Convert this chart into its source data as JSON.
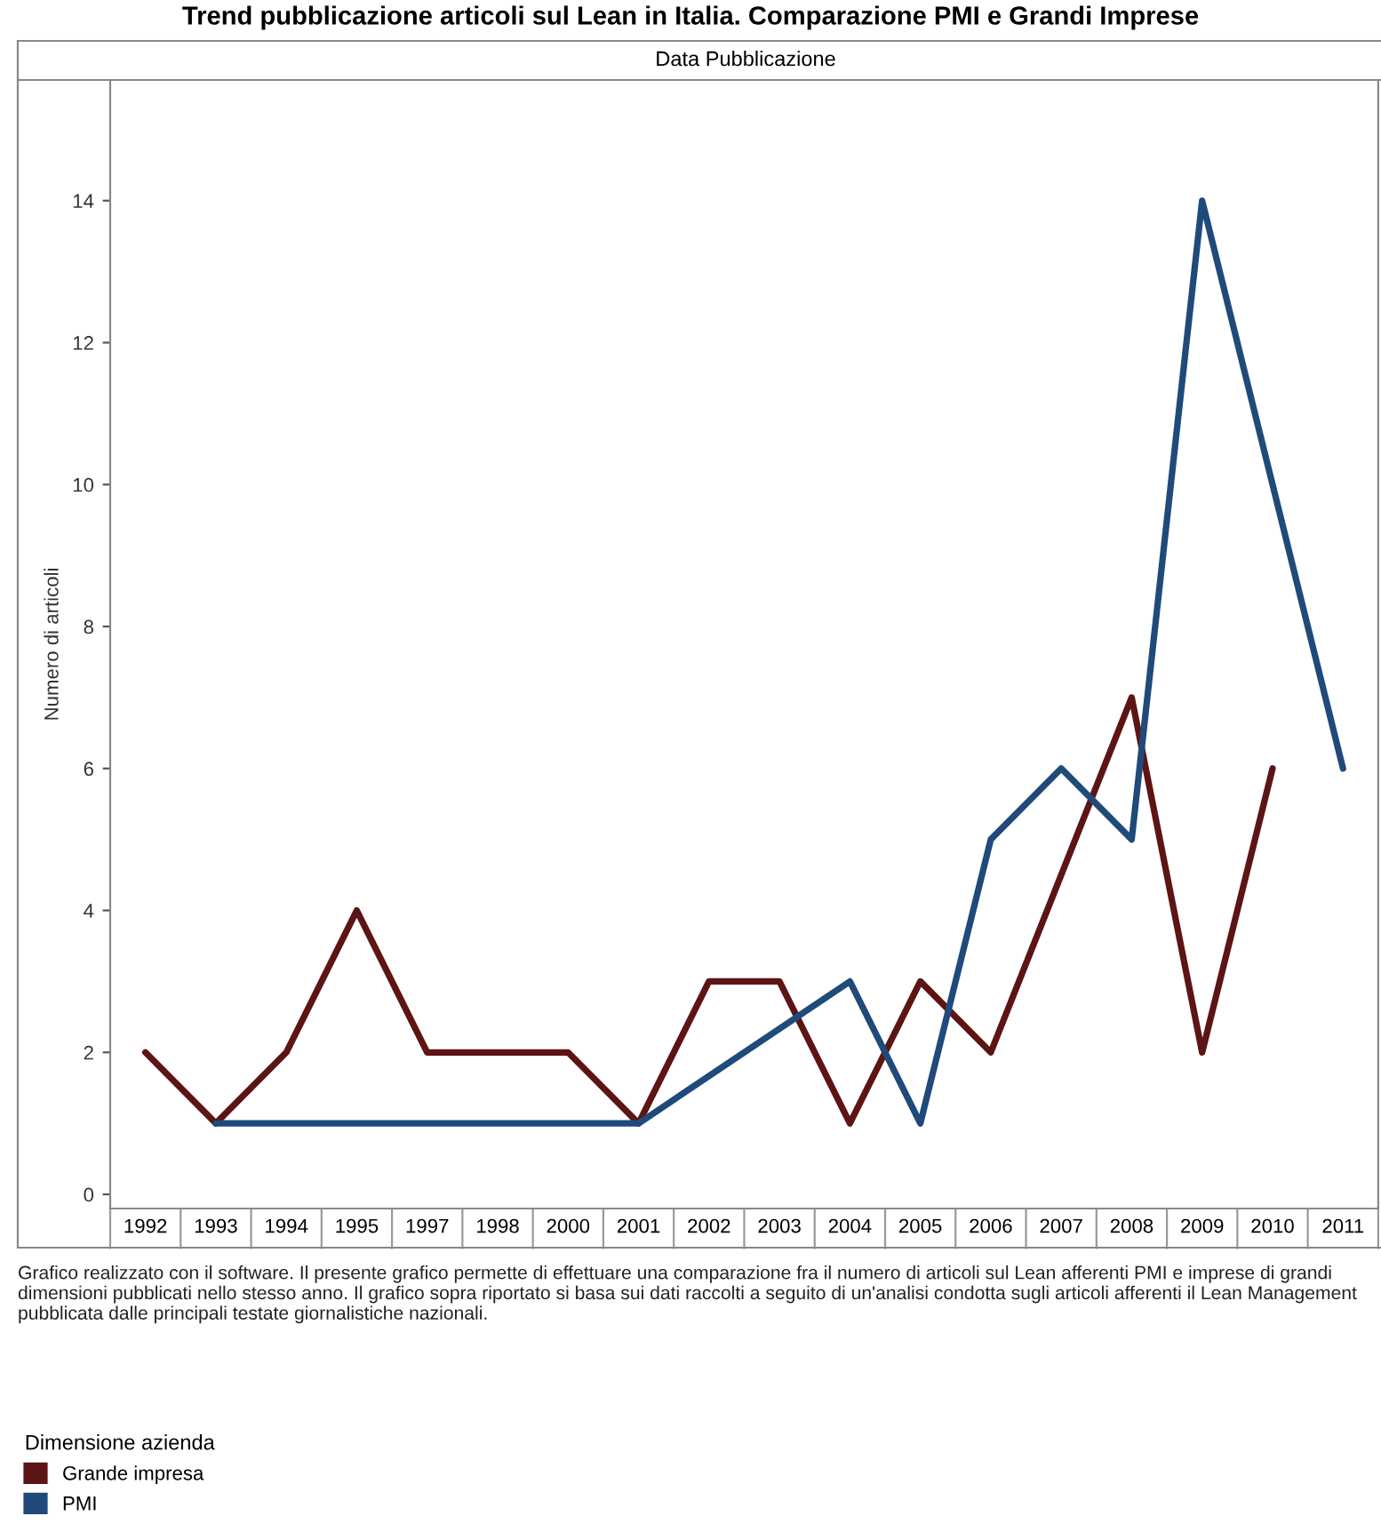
{
  "chart_data": {
    "type": "line",
    "title": "Trend pubblicazione articoli sul Lean in Italia. Comparazione PMI e Grandi Imprese",
    "xlabel": "Data Pubblicazione",
    "ylabel": "Numero di articoli",
    "categories": [
      "1992",
      "1993",
      "1994",
      "1995",
      "1997",
      "1998",
      "2000",
      "2001",
      "2002",
      "2003",
      "2004",
      "2005",
      "2006",
      "2007",
      "2008",
      "2009",
      "2010",
      "2011"
    ],
    "series": [
      {
        "name": "Grande impresa",
        "color": "#5c1414",
        "values": [
          2,
          1,
          2,
          4,
          2,
          2,
          2,
          1,
          3,
          3,
          1,
          3,
          2,
          null,
          7,
          2,
          6,
          null
        ]
      },
      {
        "name": "PMI",
        "color": "#1f4a7a",
        "values": [
          null,
          1,
          1,
          1,
          1,
          1,
          1,
          1,
          null,
          null,
          3,
          1,
          5,
          6,
          5,
          14,
          null,
          6
        ]
      }
    ],
    "ylim": [
      -0.2,
      15.7
    ],
    "yticks": [
      0,
      2,
      4,
      6,
      8,
      10,
      12,
      14
    ],
    "grid": false,
    "legend": "bottom left",
    "legend_title": "Dimensione azienda",
    "annotations": [
      "Grafico realizzato con il software. Il presente grafico permette di effettuare una comparazione fra il numero di articoli sul Lean afferenti PMI e imprese di grandi dimensioni pubblicati nello stesso anno. Il grafico sopra riportato si basa sui dati raccolti a seguito di un'analisi condotta sugli articoli afferenti il Lean Management pubblicata dalle principali testate giornalistiche nazionali."
    ],
    "line_style": "solid",
    "marker": "none"
  }
}
